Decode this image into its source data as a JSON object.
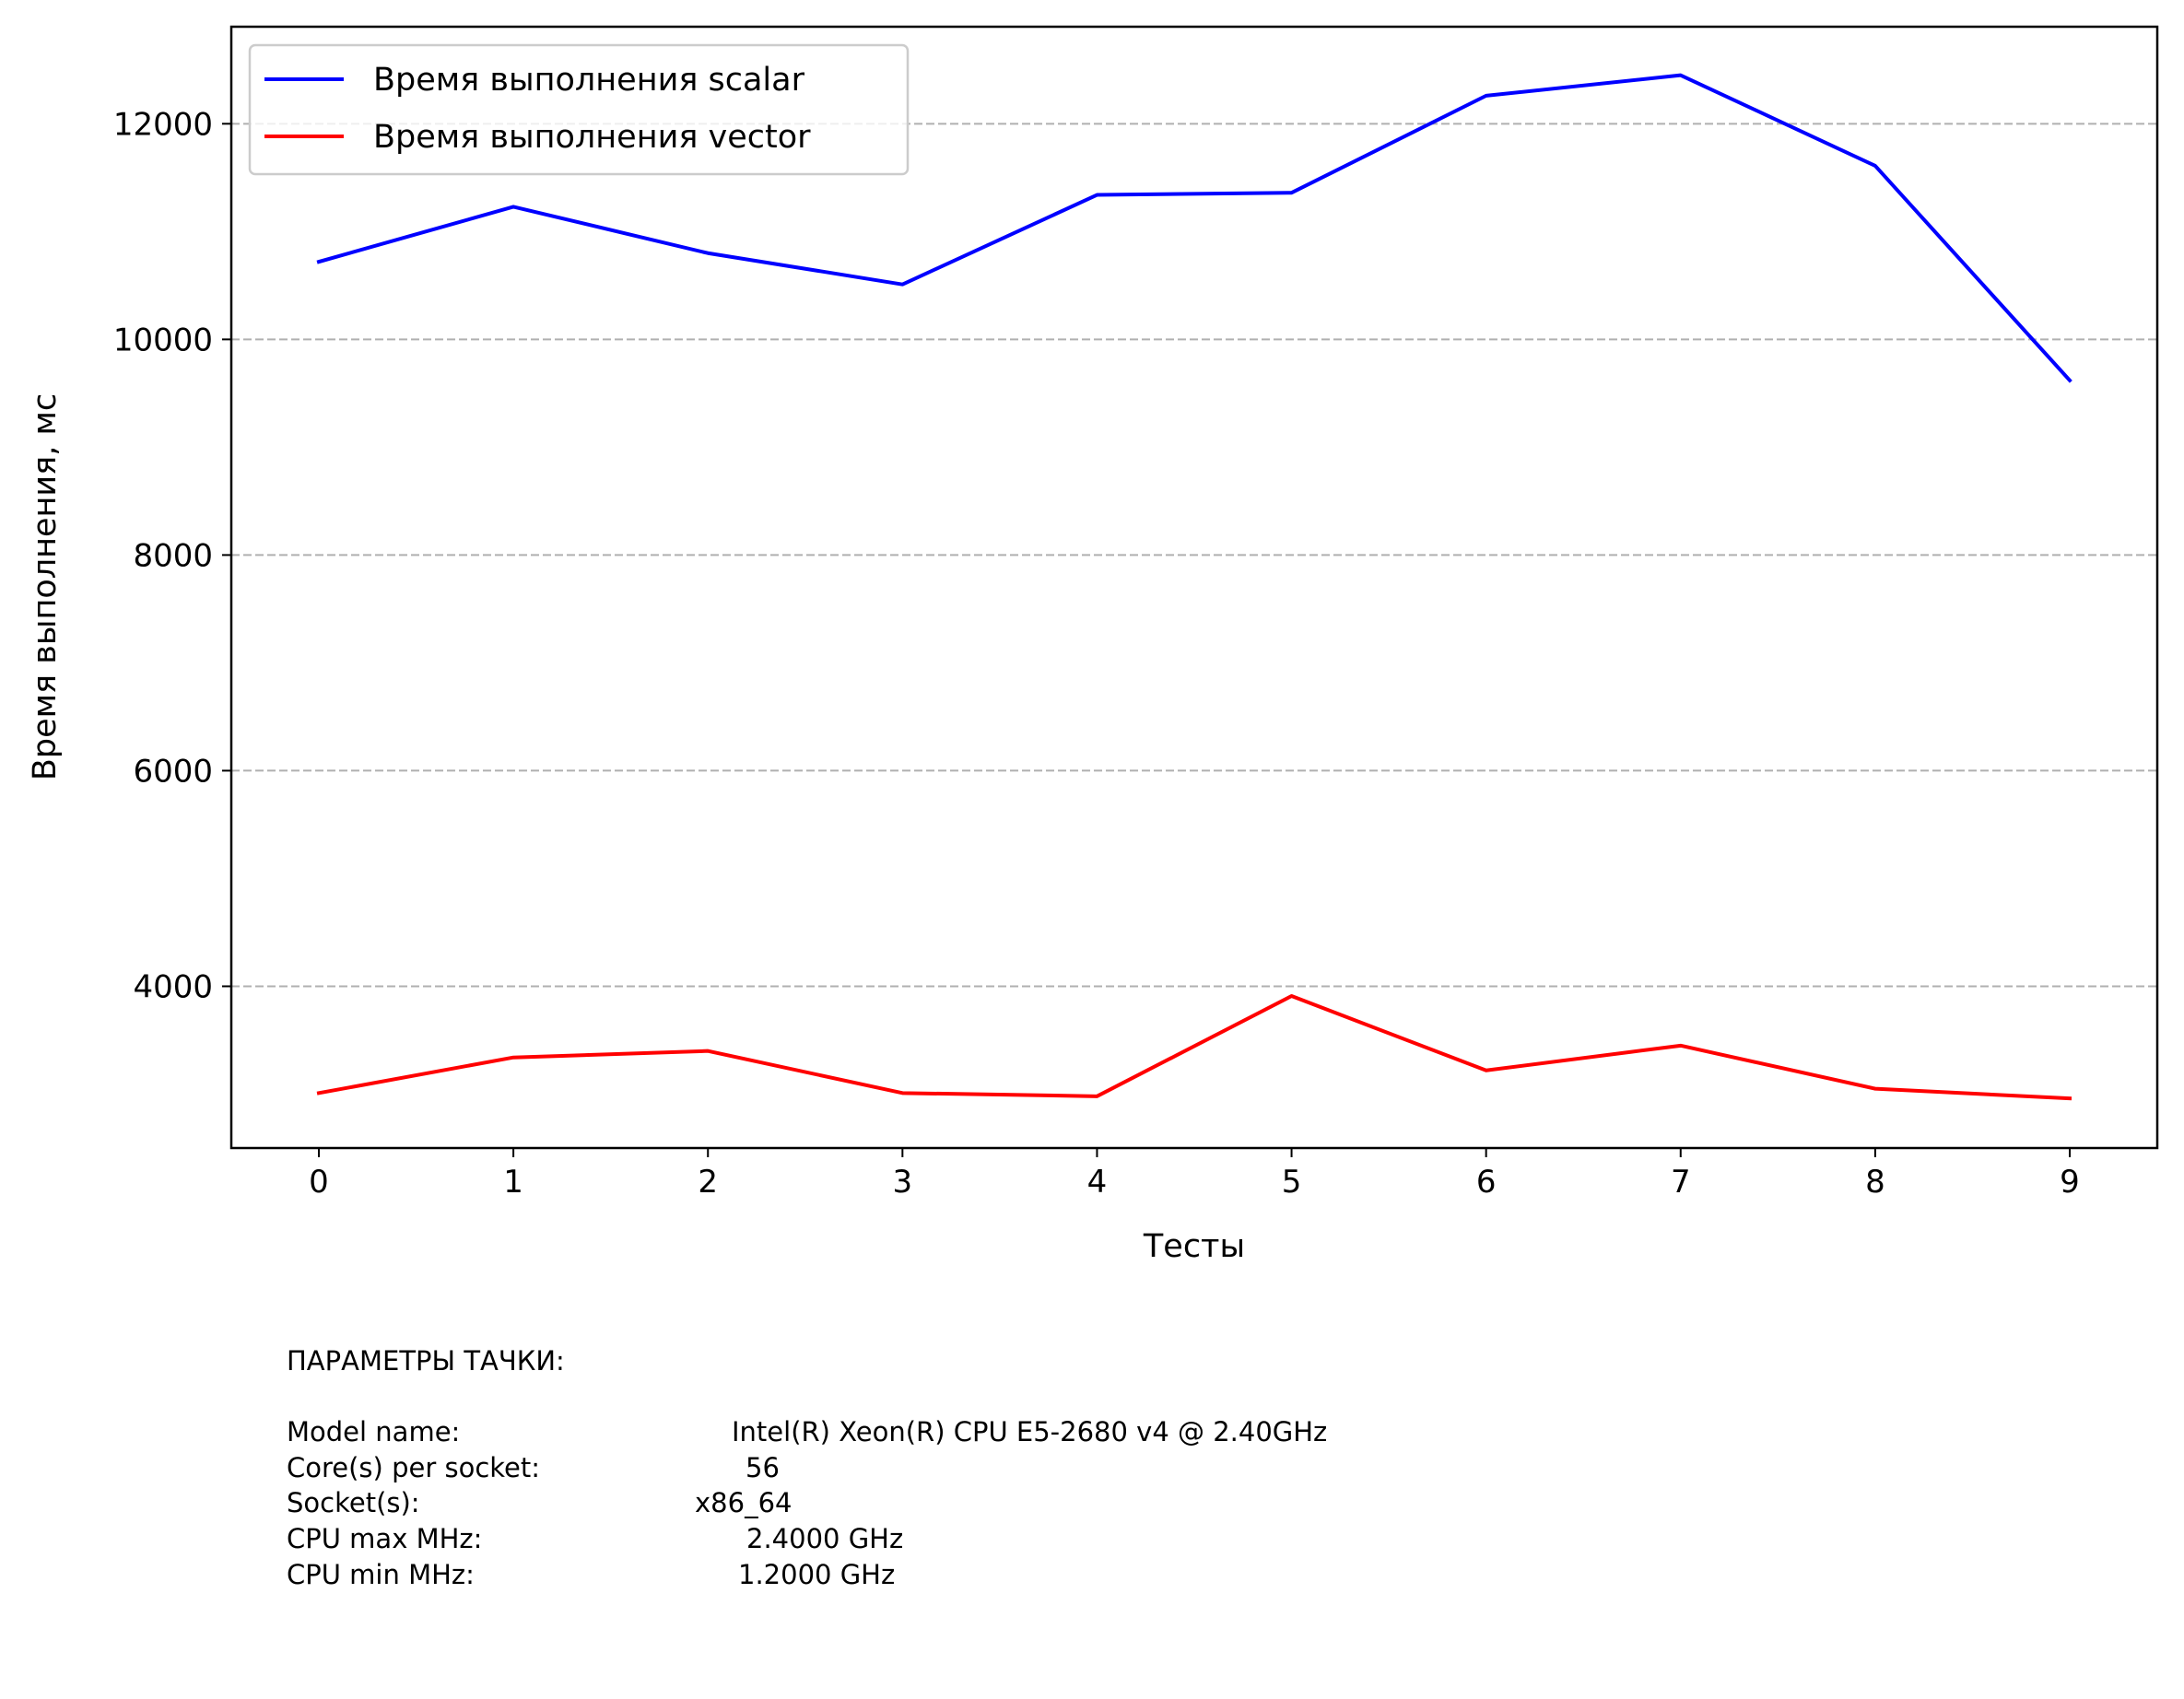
{
  "chart_data": {
    "type": "line",
    "title": "",
    "xlabel": "Тесты",
    "ylabel": "Время выполнения, мс",
    "x": [
      0,
      1,
      2,
      3,
      4,
      5,
      6,
      7,
      8,
      9
    ],
    "xlim": [
      -0.45,
      9.45
    ],
    "ylim": [
      2500,
      12900
    ],
    "yticks": [
      4000,
      6000,
      8000,
      10000,
      12000
    ],
    "grid": "y, dashed",
    "legend_position": "top-left",
    "series": [
      {
        "name": "Время выполнения scalar",
        "color": "#0000ff",
        "values": [
          10720,
          11230,
          10800,
          10510,
          11340,
          11360,
          12260,
          12450,
          11610,
          9620
        ]
      },
      {
        "name": "Время выполнения vector",
        "color": "#ff0000",
        "values": [
          3010,
          3340,
          3400,
          3010,
          2980,
          3910,
          3220,
          3450,
          3050,
          2960
        ]
      }
    ]
  },
  "machine_info": {
    "heading": "ПАРАМЕТРЫ ТАЧКИ:",
    "rows": [
      {
        "label": "Model name:",
        "value": "Intel(R) Xeon(R) CPU E5-2680 v4 @ 2.40GHz"
      },
      {
        "label": "Core(s) per socket:",
        "value": "56"
      },
      {
        "label": "Socket(s):",
        "value": "x86_64"
      },
      {
        "label": "CPU max MHz:",
        "value": "2.4000 GHz"
      },
      {
        "label": "CPU min MHz:",
        "value": "1.2000 GHz"
      }
    ]
  }
}
